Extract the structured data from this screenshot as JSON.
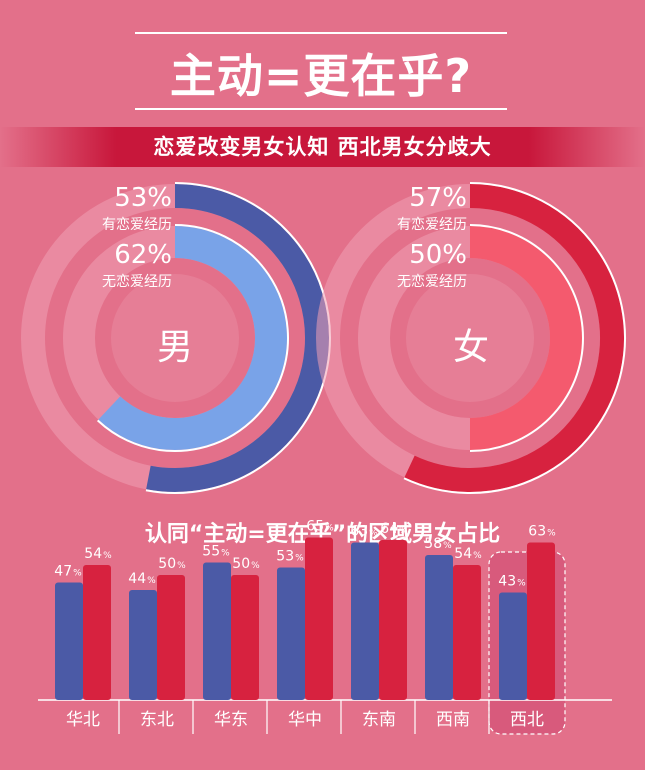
{
  "title": "主动=更在乎?",
  "subtitle": "恋爱改变男女认知  西北男女分歧大",
  "colors": {
    "background": "#e3708a",
    "male_outer": "#4b5aa6",
    "male_inner": "#79a3e8",
    "female_outer": "#d7223f",
    "female_inner": "#f45a6e",
    "track": "#f0a0b4",
    "highlight_box": "#d85a7c"
  },
  "rings": {
    "male": {
      "center_label": "男",
      "outer_pct": "53%",
      "outer_label": "有恋爱经历",
      "inner_pct": "62%",
      "inner_label": "无恋爱经历"
    },
    "female": {
      "center_label": "女",
      "outer_pct": "57%",
      "outer_label": "有恋爱经历",
      "inner_pct": "50%",
      "inner_label": "无恋爱经历"
    }
  },
  "section_title": "认同“主动=更在乎”的区域男女占比",
  "chart_data": [
    {
      "type": "pie",
      "center_label": "男",
      "series": [
        {
          "name": "有恋爱经历",
          "value": 53
        },
        {
          "name": "无恋爱经历",
          "value": 62
        }
      ]
    },
    {
      "type": "pie",
      "center_label": "女",
      "series": [
        {
          "name": "有恋爱经历",
          "value": 57
        },
        {
          "name": "无恋爱经历",
          "value": 50
        }
      ]
    },
    {
      "type": "bar",
      "title": "认同“主动=更在乎”的区域男女占比",
      "categories": [
        "华北",
        "东北",
        "华东",
        "华中",
        "东南",
        "西南",
        "西北"
      ],
      "series": [
        {
          "values": [
            47,
            44,
            55,
            53,
            63,
            58,
            43
          ]
        },
        {
          "values": [
            54,
            50,
            50,
            65,
            64,
            54,
            63
          ]
        }
      ],
      "unit": "%",
      "highlight_category": "西北"
    }
  ]
}
